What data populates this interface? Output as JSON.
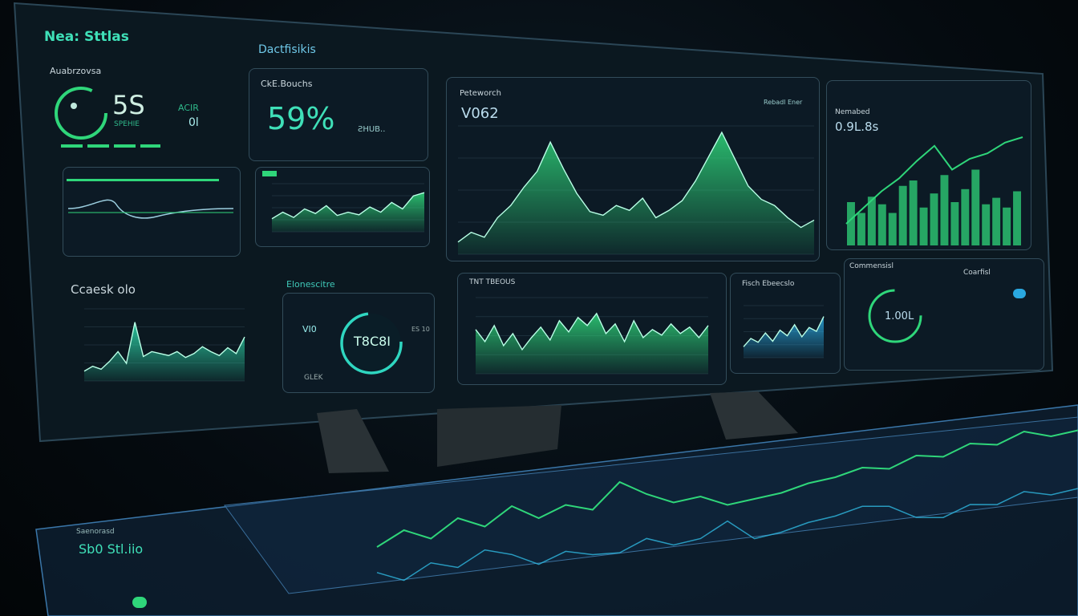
{
  "colors": {
    "accent": "#3fe0b8",
    "green": "#2fd67a",
    "blue": "#2aa8e0",
    "bezel": "#0b1820"
  },
  "left": {
    "title": "Nea: Sttlas",
    "subtitle": "Auabrzovsa",
    "gauge_value": "5S",
    "gauge_caption": "SPEHIE",
    "side_label": "ACIR",
    "side_value": "0l",
    "section2": "Ccaesk olo"
  },
  "middle": {
    "title": "Dactfisikis",
    "card_label": "CkE.Bouchs",
    "card_value": "59%",
    "card_unit": "ƧHUB..",
    "gauge_title": "Elonescitre",
    "gauge_value": "T8C8I",
    "gauge_left": "VI0",
    "gauge_left2": "GLEK",
    "gauge_right": "ES 10"
  },
  "main_chart": {
    "label": "Peteworch",
    "value": "V062",
    "note": "Rebadl Ener"
  },
  "right": {
    "label": "Nemabed",
    "value": "0.9L.8s",
    "section": "Commensisl",
    "section2": "Coarfisl",
    "gauge_value": "1.00L"
  },
  "lower": {
    "chart1_label": "TNT TBEOUS",
    "chart2_label": "Fisch Ebeecslo"
  },
  "floor": {
    "label": "Saenorasd",
    "value": "Sb0 Stl.iio"
  },
  "charts": {
    "main": [
      10,
      18,
      14,
      30,
      40,
      55,
      68,
      92,
      70,
      50,
      35,
      32,
      40,
      36,
      46,
      30,
      36,
      44,
      60,
      80,
      100,
      78,
      56,
      45,
      40,
      30,
      22,
      28
    ],
    "right_bars": [
      40,
      30,
      45,
      38,
      30,
      55,
      60,
      35,
      48,
      65,
      40,
      52,
      70,
      38,
      44,
      35,
      50
    ],
    "right_line": [
      20,
      35,
      50,
      62,
      78,
      92,
      70,
      80,
      85,
      95,
      100
    ],
    "mini": [
      20,
      30,
      22,
      35,
      28,
      40,
      25,
      30,
      26,
      38,
      30,
      45,
      35,
      55,
      60
    ],
    "left_bars": [
      10,
      15,
      12,
      20,
      30,
      18,
      60,
      25,
      30,
      28,
      26,
      30,
      24,
      28,
      35,
      30,
      26,
      34,
      28,
      45
    ],
    "lower_green": [
      55,
      40,
      60,
      35,
      50,
      30,
      45,
      58,
      42,
      66,
      52,
      70,
      60,
      75,
      50,
      62,
      40,
      66,
      45,
      55,
      48,
      62,
      50,
      58,
      45,
      60
    ],
    "lower_blue": [
      20,
      35,
      28,
      45,
      30,
      50,
      40,
      60,
      38,
      55,
      48,
      75
    ],
    "floor": [
      20,
      40,
      25,
      50,
      35,
      60,
      40,
      55,
      45,
      80,
      60,
      45,
      50,
      35,
      40,
      45,
      55,
      60,
      70,
      65,
      80,
      75,
      90,
      85,
      100,
      90,
      95
    ]
  }
}
